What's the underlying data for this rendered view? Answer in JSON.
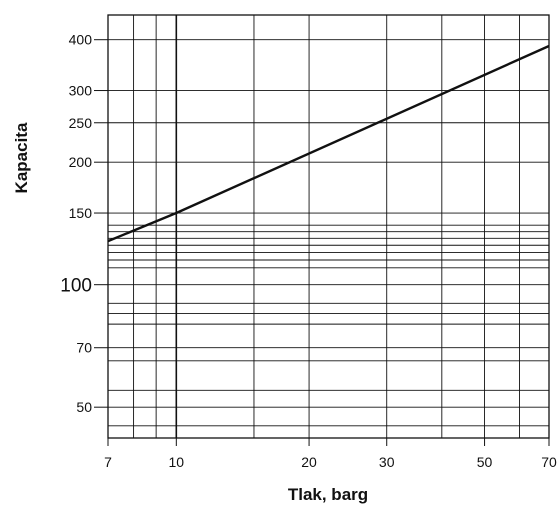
{
  "chart_data": {
    "type": "line",
    "title": "",
    "xlabel": "Tlak, barg",
    "ylabel": "Kapacita",
    "x_scale": "log",
    "y_scale": "log",
    "xlim": [
      7,
      70
    ],
    "ylim": [
      42,
      460
    ],
    "grid": true,
    "x_gridlines": [
      8,
      9,
      10,
      15,
      20,
      30,
      40,
      50,
      60
    ],
    "y_gridlines": [
      45,
      50,
      55,
      65,
      70,
      80,
      85,
      90,
      100,
      110,
      115,
      120,
      125,
      130,
      135,
      140,
      150,
      200,
      250,
      300,
      400
    ],
    "x_ticks": [
      {
        "value": 7,
        "label": "7"
      },
      {
        "value": 10,
        "label": "10"
      },
      {
        "value": 20,
        "label": "20"
      },
      {
        "value": 30,
        "label": "30"
      },
      {
        "value": 50,
        "label": "50"
      },
      {
        "value": 70,
        "label": "70"
      }
    ],
    "y_ticks": [
      {
        "value": 50,
        "label": "50"
      },
      {
        "value": 70,
        "label": "70"
      },
      {
        "value": 100,
        "label": "100",
        "emphasis": true
      },
      {
        "value": 150,
        "label": "150"
      },
      {
        "value": 200,
        "label": "200"
      },
      {
        "value": 250,
        "label": "250"
      },
      {
        "value": 300,
        "label": "300"
      },
      {
        "value": 400,
        "label": "400"
      }
    ],
    "series": [
      {
        "color": "#111111",
        "points": [
          {
            "x": 7,
            "y": 128
          },
          {
            "x": 10,
            "y": 150
          },
          {
            "x": 70,
            "y": 386
          }
        ]
      }
    ]
  }
}
